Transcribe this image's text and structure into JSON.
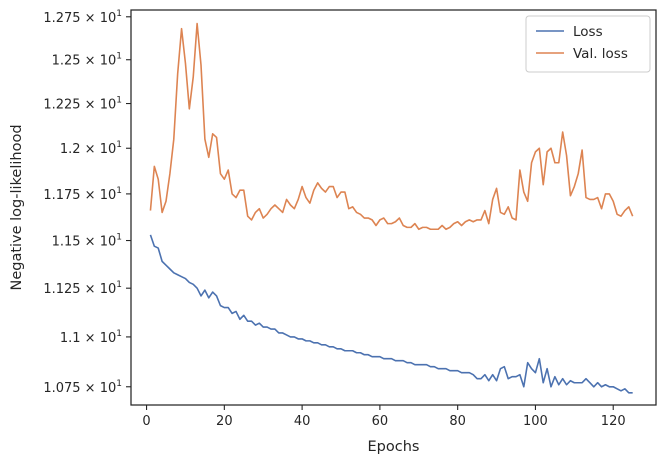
{
  "chart_data": {
    "type": "line",
    "xlabel": "Epochs",
    "ylabel": "Negative log-likelihood",
    "xlim": [
      -4,
      131
    ],
    "ylim": [
      10.66,
      12.79
    ],
    "yscale": "log",
    "grid": false,
    "legend_position": "top-right",
    "x_ticks": [
      {
        "value": 0,
        "label": "0"
      },
      {
        "value": 20,
        "label": "20"
      },
      {
        "value": 40,
        "label": "40"
      },
      {
        "value": 60,
        "label": "60"
      },
      {
        "value": 80,
        "label": "80"
      },
      {
        "value": 100,
        "label": "100"
      },
      {
        "value": 120,
        "label": "120"
      }
    ],
    "y_ticks": [
      {
        "value": 10.75,
        "mantissa": "1.075"
      },
      {
        "value": 11.0,
        "mantissa": "1.1"
      },
      {
        "value": 11.25,
        "mantissa": "1.125"
      },
      {
        "value": 11.5,
        "mantissa": "1.15"
      },
      {
        "value": 11.75,
        "mantissa": "1.175"
      },
      {
        "value": 12.0,
        "mantissa": "1.2"
      },
      {
        "value": 12.25,
        "mantissa": "1.225"
      },
      {
        "value": 12.5,
        "mantissa": "1.25"
      },
      {
        "value": 12.75,
        "mantissa": "1.275"
      }
    ],
    "y_tick_power": "10",
    "y_tick_exponent": "1",
    "x": [
      1,
      2,
      3,
      4,
      5,
      6,
      7,
      8,
      9,
      10,
      11,
      12,
      13,
      14,
      15,
      16,
      17,
      18,
      19,
      20,
      21,
      22,
      23,
      24,
      25,
      26,
      27,
      28,
      29,
      30,
      31,
      32,
      33,
      34,
      35,
      36,
      37,
      38,
      39,
      40,
      41,
      42,
      43,
      44,
      45,
      46,
      47,
      48,
      49,
      50,
      51,
      52,
      53,
      54,
      55,
      56,
      57,
      58,
      59,
      60,
      61,
      62,
      63,
      64,
      65,
      66,
      67,
      68,
      69,
      70,
      71,
      72,
      73,
      74,
      75,
      76,
      77,
      78,
      79,
      80,
      81,
      82,
      83,
      84,
      85,
      86,
      87,
      88,
      89,
      90,
      91,
      92,
      93,
      94,
      95,
      96,
      97,
      98,
      99,
      100,
      101,
      102,
      103,
      104,
      105,
      106,
      107,
      108,
      109,
      110,
      111,
      112,
      113,
      114,
      115,
      116,
      117,
      118,
      119,
      120,
      121,
      122,
      123,
      124,
      125
    ],
    "series": [
      {
        "name": "Loss",
        "color": "#4c72b0",
        "values": [
          11.53,
          11.47,
          11.46,
          11.39,
          11.37,
          11.35,
          11.33,
          11.32,
          11.31,
          11.3,
          11.28,
          11.27,
          11.25,
          11.21,
          11.24,
          11.2,
          11.23,
          11.21,
          11.16,
          11.15,
          11.15,
          11.12,
          11.13,
          11.09,
          11.11,
          11.08,
          11.08,
          11.06,
          11.07,
          11.05,
          11.05,
          11.04,
          11.04,
          11.02,
          11.02,
          11.01,
          11.0,
          11.0,
          10.99,
          10.99,
          10.98,
          10.98,
          10.97,
          10.97,
          10.96,
          10.96,
          10.95,
          10.95,
          10.94,
          10.94,
          10.93,
          10.93,
          10.93,
          10.92,
          10.92,
          10.91,
          10.91,
          10.9,
          10.9,
          10.9,
          10.89,
          10.89,
          10.89,
          10.88,
          10.88,
          10.88,
          10.87,
          10.87,
          10.86,
          10.86,
          10.86,
          10.86,
          10.85,
          10.85,
          10.84,
          10.84,
          10.84,
          10.83,
          10.83,
          10.83,
          10.82,
          10.82,
          10.82,
          10.81,
          10.79,
          10.79,
          10.81,
          10.78,
          10.81,
          10.78,
          10.84,
          10.85,
          10.79,
          10.8,
          10.8,
          10.81,
          10.75,
          10.87,
          10.84,
          10.82,
          10.89,
          10.77,
          10.84,
          10.75,
          10.8,
          10.76,
          10.79,
          10.76,
          10.78,
          10.77,
          10.77,
          10.77,
          10.79,
          10.77,
          10.75,
          10.77,
          10.75,
          10.76,
          10.75,
          10.75,
          10.74,
          10.73,
          10.74,
          10.72,
          10.72
        ]
      },
      {
        "name": "Val. loss",
        "color": "#dd8452",
        "values": [
          11.66,
          11.9,
          11.83,
          11.65,
          11.71,
          11.86,
          12.05,
          12.42,
          12.68,
          12.48,
          12.22,
          12.4,
          12.71,
          12.47,
          12.05,
          11.95,
          12.08,
          12.06,
          11.86,
          11.83,
          11.88,
          11.75,
          11.73,
          11.77,
          11.77,
          11.63,
          11.61,
          11.65,
          11.67,
          11.62,
          11.64,
          11.67,
          11.69,
          11.67,
          11.65,
          11.72,
          11.69,
          11.67,
          11.72,
          11.79,
          11.73,
          11.7,
          11.77,
          11.81,
          11.78,
          11.76,
          11.79,
          11.79,
          11.73,
          11.76,
          11.76,
          11.67,
          11.68,
          11.65,
          11.64,
          11.62,
          11.62,
          11.61,
          11.58,
          11.61,
          11.62,
          11.59,
          11.59,
          11.6,
          11.62,
          11.58,
          11.57,
          11.57,
          11.59,
          11.56,
          11.57,
          11.57,
          11.56,
          11.56,
          11.56,
          11.58,
          11.56,
          11.57,
          11.59,
          11.6,
          11.58,
          11.6,
          11.61,
          11.6,
          11.61,
          11.61,
          11.66,
          11.59,
          11.72,
          11.78,
          11.65,
          11.64,
          11.68,
          11.62,
          11.61,
          11.88,
          11.76,
          11.71,
          11.92,
          11.98,
          12.0,
          11.8,
          11.98,
          12.0,
          11.92,
          11.92,
          12.09,
          11.96,
          11.74,
          11.79,
          11.86,
          11.99,
          11.73,
          11.72,
          11.72,
          11.73,
          11.67,
          11.75,
          11.75,
          11.71,
          11.64,
          11.63,
          11.66,
          11.68,
          11.63
        ]
      }
    ]
  }
}
